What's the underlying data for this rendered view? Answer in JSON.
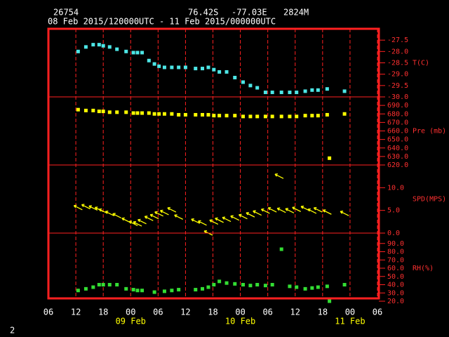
{
  "header": {
    "station": "26754",
    "lat": "76.42S",
    "lon": "-77.03E",
    "elev": "2824M",
    "period": "08 Feb 2015/120000UTC - 11 Feb 2015/000000UTC"
  },
  "chart_data": {
    "type": "meteogram",
    "x": [
      6.5,
      8.2,
      9.8,
      11.1,
      12,
      13.4,
      15,
      17,
      18.6,
      19.5,
      20.5,
      22,
      23.2,
      24.2,
      25.4,
      27,
      28.5,
      30,
      32.2,
      33.7,
      35,
      36.2,
      37.4,
      39,
      40.8,
      42.6,
      44.2,
      45.7,
      47.5,
      49,
      50.5,
      51,
      52.8,
      54.3,
      56.2,
      57.7,
      59,
      61,
      61.5,
      64.8
    ],
    "xlim": [
      0,
      72
    ],
    "xticks": [
      {
        "value": 0,
        "label": "06"
      },
      {
        "value": 6,
        "label": "12"
      },
      {
        "value": 12,
        "label": "18"
      },
      {
        "value": 18,
        "label": "00"
      },
      {
        "value": 24,
        "label": "06"
      },
      {
        "value": 30,
        "label": "12"
      },
      {
        "value": 36,
        "label": "18"
      },
      {
        "value": 42,
        "label": "00"
      },
      {
        "value": 48,
        "label": "06"
      },
      {
        "value": 54,
        "label": "12"
      },
      {
        "value": 60,
        "label": "18"
      },
      {
        "value": 66,
        "label": "00"
      },
      {
        "value": 72,
        "label": "06"
      }
    ],
    "date_labels": [
      {
        "value": 18,
        "label": "09 Feb"
      },
      {
        "value": 42,
        "label": "10 Feb"
      },
      {
        "value": 66,
        "label": "11 Feb"
      }
    ],
    "panels": [
      {
        "type": "scatter",
        "label": "T(C)",
        "color": "#4de6e6",
        "ylim": [
          -30,
          -27
        ],
        "yticks": [
          {
            "value": -27.5,
            "label": "-27.5"
          },
          {
            "value": -28,
            "label": "-28.0"
          },
          {
            "value": -28.5,
            "label": "-28.5"
          },
          {
            "value": -29,
            "label": "-29.0"
          },
          {
            "value": -29.5,
            "label": "-29.5"
          },
          {
            "value": -30,
            "label": "-30.0"
          }
        ],
        "values": [
          -28.0,
          -27.8,
          -27.7,
          -27.7,
          -27.75,
          -27.8,
          -27.9,
          -28.0,
          -28.05,
          -28.05,
          -28.05,
          -28.4,
          -28.55,
          -28.65,
          -28.7,
          -28.7,
          -28.7,
          -28.7,
          -28.75,
          -28.75,
          -28.7,
          -28.8,
          -28.9,
          -28.9,
          -29.15,
          -29.35,
          -29.5,
          -29.6,
          -29.8,
          -29.8,
          null,
          -29.8,
          -29.8,
          -29.8,
          -29.75,
          -29.7,
          -29.7,
          -29.65,
          null,
          -29.75
        ]
      },
      {
        "type": "scatter",
        "label": "Pre (mb)",
        "color": "#ffff00",
        "ylim": [
          620,
          700
        ],
        "yticks": [
          {
            "value": 690,
            "label": "690.0"
          },
          {
            "value": 680,
            "label": "680.0"
          },
          {
            "value": 670,
            "label": "670.0"
          },
          {
            "value": 660,
            "label": "660.0"
          },
          {
            "value": 650,
            "label": "650.0"
          },
          {
            "value": 640,
            "label": "640.0"
          },
          {
            "value": 630,
            "label": "630.0"
          },
          {
            "value": 620,
            "label": "620.0"
          }
        ],
        "values": [
          685,
          684,
          684,
          683,
          683,
          682,
          682,
          682,
          681,
          681,
          681,
          681,
          680,
          680,
          680,
          680,
          679,
          679,
          679,
          679,
          679,
          678,
          678,
          678,
          678,
          677,
          677,
          677,
          677,
          677,
          null,
          677,
          677,
          677,
          678,
          678,
          678,
          679,
          628,
          680
        ]
      },
      {
        "type": "wind",
        "label": "SPD(MPS)",
        "color": "#ffff00",
        "ylim": [
          0,
          15
        ],
        "yticks": [
          {
            "value": 10,
            "label": "10.0"
          },
          {
            "value": 5,
            "label": "5.0"
          },
          {
            "value": 0,
            "label": "0.0"
          }
        ],
        "values": [
          5.6,
          5.8,
          5.5,
          5.2,
          4.8,
          4.3,
          3.8,
          2.8,
          2.1,
          2.0,
          2.5,
          3.2,
          3.6,
          4.2,
          4.5,
          5.1,
          3.5,
          null,
          2.6,
          2.2,
          0.0,
          2.4,
          2.8,
          3.0,
          3.3,
          3.6,
          4.0,
          4.4,
          4.8,
          5.1,
          12.5,
          5.0,
          4.9,
          5.2,
          5.4,
          4.8,
          5.1,
          4.6,
          null,
          4.3
        ]
      },
      {
        "type": "scatter",
        "label": "RH(%)",
        "color": "#33dd33",
        "ylim": [
          20,
          100
        ],
        "yticks": [
          {
            "value": 90,
            "label": "90.0"
          },
          {
            "value": 80,
            "label": "80.0"
          },
          {
            "value": 70,
            "label": "70.0"
          },
          {
            "value": 60,
            "label": "60.0"
          },
          {
            "value": 50,
            "label": "50.0"
          },
          {
            "value": 40,
            "label": "40.0"
          },
          {
            "value": 30,
            "label": "30.0"
          },
          {
            "value": 20,
            "label": "20.0"
          }
        ],
        "values": [
          33,
          35,
          37,
          40,
          40,
          40,
          40,
          35,
          34,
          33,
          33,
          null,
          31,
          null,
          32,
          33,
          34,
          null,
          34,
          35,
          37,
          40,
          44,
          42,
          41,
          40,
          39,
          40,
          39,
          40,
          null,
          83,
          38,
          37,
          35,
          36,
          37,
          38,
          20,
          40
        ]
      }
    ]
  },
  "footer": "2"
}
